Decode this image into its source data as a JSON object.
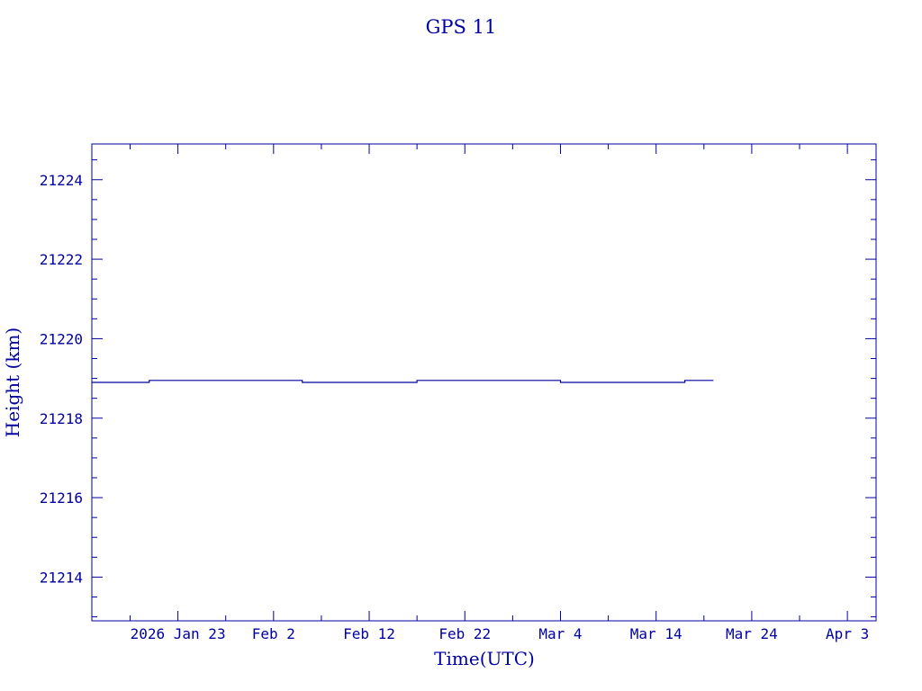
{
  "chart_data": {
    "type": "line",
    "title": "GPS 11",
    "xlabel": "Time(UTC)",
    "ylabel": "Height (km)",
    "xlim": [
      "2026-01-14",
      "2026-04-06"
    ],
    "ylim": [
      21212.9,
      21224.9
    ],
    "y_ticks": [
      21214,
      21216,
      21218,
      21220,
      21222,
      21224
    ],
    "x_ticks": [
      {
        "date": "2026-01-23",
        "label": "2026 Jan 23"
      },
      {
        "date": "2026-02-02",
        "label": "Feb  2"
      },
      {
        "date": "2026-02-12",
        "label": "Feb 12"
      },
      {
        "date": "2026-02-22",
        "label": "Feb 22"
      },
      {
        "date": "2026-03-04",
        "label": "Mar  4"
      },
      {
        "date": "2026-03-14",
        "label": "Mar 14"
      },
      {
        "date": "2026-03-24",
        "label": "Mar 24"
      },
      {
        "date": "2026-04-03",
        "label": "Apr  3"
      }
    ],
    "grid": false,
    "series": [
      {
        "color": "#0000a0",
        "points": [
          {
            "x": "2026-01-14",
            "y": 21218.9
          },
          {
            "x": "2026-01-20",
            "y": 21218.9
          },
          {
            "x": "2026-01-20",
            "y": 21218.95
          },
          {
            "x": "2026-02-05",
            "y": 21218.95
          },
          {
            "x": "2026-02-05",
            "y": 21218.9
          },
          {
            "x": "2026-02-17",
            "y": 21218.9
          },
          {
            "x": "2026-02-17",
            "y": 21218.95
          },
          {
            "x": "2026-03-04",
            "y": 21218.95
          },
          {
            "x": "2026-03-04",
            "y": 21218.9
          },
          {
            "x": "2026-03-17",
            "y": 21218.9
          },
          {
            "x": "2026-03-17",
            "y": 21218.95
          },
          {
            "x": "2026-03-20",
            "y": 21218.95
          }
        ]
      }
    ]
  }
}
